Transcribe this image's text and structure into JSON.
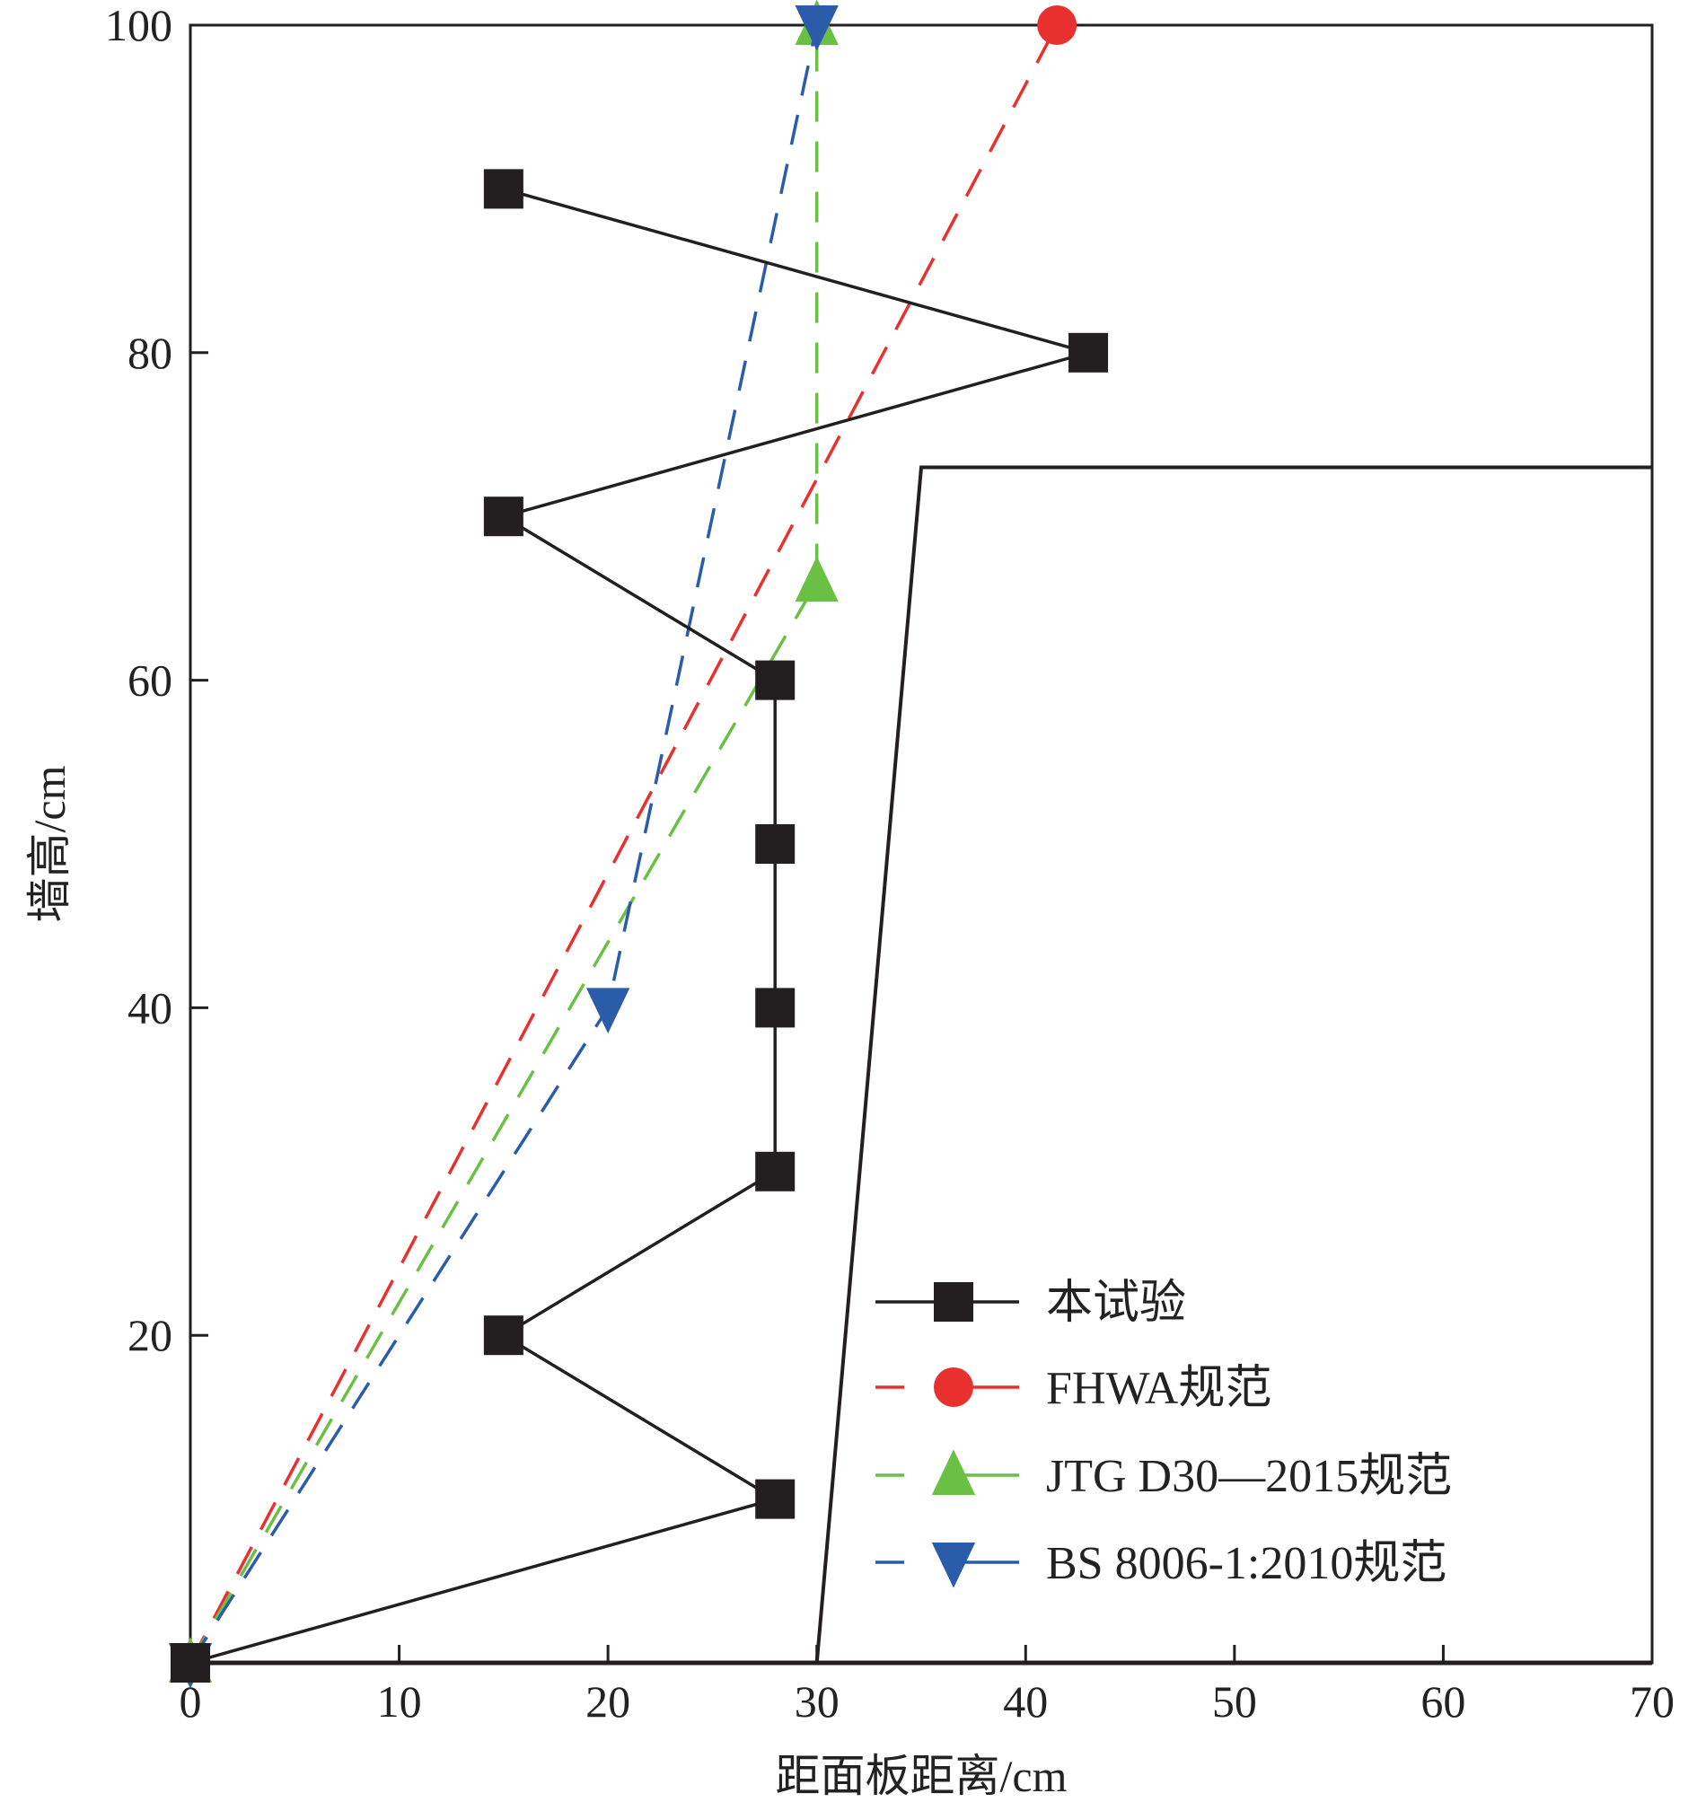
{
  "chart_data": {
    "type": "line",
    "title": "",
    "xlabel": "距面板距离/cm",
    "ylabel": "墙高/cm",
    "xlim": [
      0,
      70
    ],
    "ylim": [
      0,
      100
    ],
    "xticks": [
      "0",
      "10",
      "20",
      "30",
      "40",
      "50",
      "60",
      "70"
    ],
    "yticks": [
      "20",
      "40",
      "60",
      "80",
      "100"
    ],
    "grid": false,
    "legend_position": "bottom-right",
    "series": [
      {
        "name": "本试验",
        "color": "#231f20",
        "dash": false,
        "marker": "square",
        "points": [
          [
            0,
            0
          ],
          [
            28,
            10
          ],
          [
            15,
            20
          ],
          [
            28,
            30
          ],
          [
            28,
            40
          ],
          [
            28,
            50
          ],
          [
            28,
            60
          ],
          [
            15,
            70
          ],
          [
            43,
            80
          ],
          [
            15,
            90
          ]
        ]
      },
      {
        "name": "FHWA规范",
        "color": "#e8312f",
        "dash": true,
        "marker": "circle",
        "points": [
          [
            0,
            0
          ],
          [
            41.5,
            100
          ]
        ]
      },
      {
        "name": "JTG D30—2015规范",
        "color": "#6abf45",
        "dash": true,
        "marker": "triangle-up",
        "points": [
          [
            0,
            0
          ],
          [
            30,
            66
          ],
          [
            30,
            100
          ]
        ]
      },
      {
        "name": "BS 8006-1:2010规范",
        "color": "#2a5caa",
        "dash": true,
        "marker": "triangle-down",
        "points": [
          [
            0,
            0
          ],
          [
            20,
            40
          ],
          [
            30,
            100
          ]
        ]
      }
    ],
    "reference_line": {
      "color": "#231f20",
      "points": [
        [
          30,
          0
        ],
        [
          35,
          73
        ],
        [
          70,
          73
        ]
      ]
    }
  }
}
